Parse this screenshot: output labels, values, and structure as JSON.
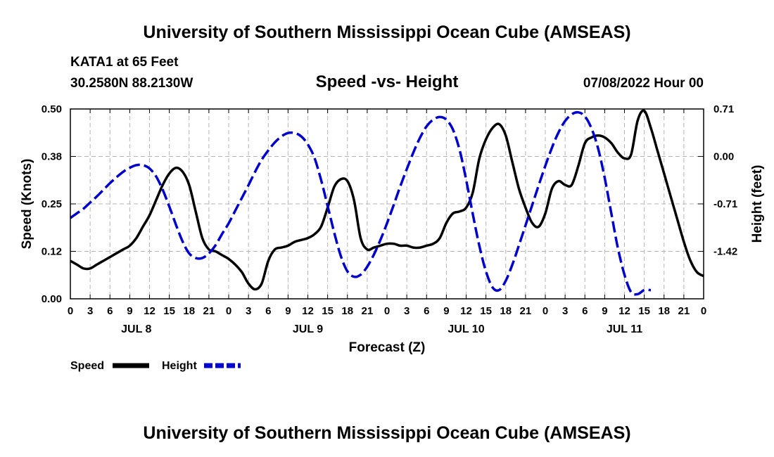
{
  "page": {
    "title_top": "University of Southern Mississippi Ocean Cube (AMSEAS)",
    "title_bottom": "University of Southern Mississippi Ocean Cube (AMSEAS)"
  },
  "header": {
    "station": "KATA1 at 65 Feet",
    "coords": "30.2580N  88.2130W",
    "subtitle": "Speed -vs- Height",
    "datetime": "07/08/2022 Hour 00"
  },
  "colors": {
    "speed": "#000000",
    "height": "#0000cc",
    "grid": "#b4b4b4"
  },
  "chart_data": {
    "type": "line",
    "title": "Speed -vs- Height",
    "xlabel": "Forecast (Z)",
    "ylabel": "Speed (Knots)",
    "y2label": "Height (feet)",
    "x_unit": "hours since 07/08/2022 00Z",
    "xlim": [
      0,
      96
    ],
    "ylim": [
      0,
      0.5
    ],
    "y2lim": [
      -2.13,
      0.71
    ],
    "yticks": [
      0,
      0.125,
      0.25,
      0.375,
      0.5
    ],
    "ytick_labels": [
      "0.00",
      "0.12",
      "0.25",
      "0.38",
      "0.50"
    ],
    "y2ticks": [
      0.71,
      0,
      -0.71,
      -1.42
    ],
    "y2tick_labels": [
      "0.71",
      "0.00",
      "-0.71",
      "-1.42"
    ],
    "xticks": [
      0,
      3,
      6,
      9,
      12,
      15,
      18,
      21,
      24,
      27,
      30,
      33,
      36,
      39,
      42,
      45,
      48,
      51,
      54,
      57,
      60,
      63,
      66,
      69,
      72,
      75,
      78,
      81,
      84,
      87,
      90,
      93,
      96
    ],
    "xtick_labels": [
      "0",
      "3",
      "6",
      "9",
      "12",
      "15",
      "18",
      "21",
      "0",
      "3",
      "6",
      "9",
      "12",
      "15",
      "18",
      "21",
      "0",
      "3",
      "6",
      "9",
      "12",
      "15",
      "18",
      "21",
      "0",
      "3",
      "6",
      "9",
      "12",
      "15",
      "18",
      "21",
      "0"
    ],
    "date_labels": [
      {
        "x": 10,
        "label": "JUL 8"
      },
      {
        "x": 36,
        "label": "JUL 9"
      },
      {
        "x": 60,
        "label": "JUL 10"
      },
      {
        "x": 84,
        "label": "JUL 11"
      }
    ],
    "grid": true,
    "legend": "bottom-left",
    "series": [
      {
        "name": "Speed",
        "axis": "left",
        "style": "solid",
        "points": [
          [
            0,
            0.1
          ],
          [
            1,
            0.09
          ],
          [
            2,
            0.08
          ],
          [
            3,
            0.08
          ],
          [
            4,
            0.09
          ],
          [
            5,
            0.1
          ],
          [
            6,
            0.11
          ],
          [
            7,
            0.12
          ],
          [
            8,
            0.13
          ],
          [
            9,
            0.14
          ],
          [
            10,
            0.16
          ],
          [
            11,
            0.19
          ],
          [
            12,
            0.22
          ],
          [
            13,
            0.26
          ],
          [
            14,
            0.3
          ],
          [
            15,
            0.33
          ],
          [
            16,
            0.345
          ],
          [
            17,
            0.335
          ],
          [
            18,
            0.3
          ],
          [
            19,
            0.23
          ],
          [
            20,
            0.16
          ],
          [
            21,
            0.13
          ],
          [
            22,
            0.125
          ],
          [
            23,
            0.115
          ],
          [
            24,
            0.105
          ],
          [
            25,
            0.09
          ],
          [
            26,
            0.07
          ],
          [
            27,
            0.04
          ],
          [
            28,
            0.025
          ],
          [
            29,
            0.04
          ],
          [
            30,
            0.1
          ],
          [
            31,
            0.13
          ],
          [
            32,
            0.135
          ],
          [
            33,
            0.14
          ],
          [
            34,
            0.15
          ],
          [
            35,
            0.155
          ],
          [
            36,
            0.16
          ],
          [
            37,
            0.17
          ],
          [
            38,
            0.19
          ],
          [
            39,
            0.24
          ],
          [
            40,
            0.295
          ],
          [
            41,
            0.315
          ],
          [
            42,
            0.31
          ],
          [
            43,
            0.26
          ],
          [
            44,
            0.16
          ],
          [
            45,
            0.13
          ],
          [
            46,
            0.135
          ],
          [
            47,
            0.14
          ],
          [
            48,
            0.145
          ],
          [
            49,
            0.145
          ],
          [
            50,
            0.14
          ],
          [
            51,
            0.14
          ],
          [
            52,
            0.135
          ],
          [
            53,
            0.135
          ],
          [
            54,
            0.14
          ],
          [
            55,
            0.145
          ],
          [
            56,
            0.16
          ],
          [
            57,
            0.2
          ],
          [
            58,
            0.225
          ],
          [
            59,
            0.23
          ],
          [
            60,
            0.24
          ],
          [
            61,
            0.28
          ],
          [
            62,
            0.37
          ],
          [
            63,
            0.42
          ],
          [
            64,
            0.45
          ],
          [
            65,
            0.46
          ],
          [
            66,
            0.43
          ],
          [
            67,
            0.36
          ],
          [
            68,
            0.29
          ],
          [
            69,
            0.24
          ],
          [
            70,
            0.2
          ],
          [
            71,
            0.19
          ],
          [
            72,
            0.225
          ],
          [
            73,
            0.29
          ],
          [
            74,
            0.31
          ],
          [
            75,
            0.3
          ],
          [
            76,
            0.3
          ],
          [
            77,
            0.35
          ],
          [
            78,
            0.41
          ],
          [
            79,
            0.425
          ],
          [
            80,
            0.43
          ],
          [
            81,
            0.425
          ],
          [
            82,
            0.41
          ],
          [
            83,
            0.385
          ],
          [
            84,
            0.37
          ],
          [
            85,
            0.38
          ],
          [
            86,
            0.47
          ],
          [
            87,
            0.495
          ],
          [
            88,
            0.45
          ],
          [
            89,
            0.39
          ],
          [
            90,
            0.33
          ],
          [
            91,
            0.27
          ],
          [
            92,
            0.21
          ],
          [
            93,
            0.15
          ],
          [
            94,
            0.1
          ],
          [
            95,
            0.07
          ],
          [
            96,
            0.06
          ]
        ]
      },
      {
        "name": "Height",
        "axis": "right",
        "style": "dashed",
        "points": [
          [
            0,
            -0.92
          ],
          [
            1,
            -0.85
          ],
          [
            2,
            -0.78
          ],
          [
            3,
            -0.69
          ],
          [
            4,
            -0.6
          ],
          [
            5,
            -0.5
          ],
          [
            6,
            -0.4
          ],
          [
            7,
            -0.31
          ],
          [
            8,
            -0.23
          ],
          [
            9,
            -0.17
          ],
          [
            10,
            -0.13
          ],
          [
            11,
            -0.13
          ],
          [
            12,
            -0.18
          ],
          [
            13,
            -0.3
          ],
          [
            14,
            -0.5
          ],
          [
            15,
            -0.75
          ],
          [
            16,
            -1.02
          ],
          [
            17,
            -1.27
          ],
          [
            18,
            -1.45
          ],
          [
            19,
            -1.52
          ],
          [
            20,
            -1.52
          ],
          [
            21,
            -1.45
          ],
          [
            22,
            -1.33
          ],
          [
            23,
            -1.16
          ],
          [
            24,
            -1.0
          ],
          [
            25,
            -0.81
          ],
          [
            26,
            -0.62
          ],
          [
            27,
            -0.43
          ],
          [
            28,
            -0.23
          ],
          [
            29,
            -0.05
          ],
          [
            30,
            0.09
          ],
          [
            31,
            0.21
          ],
          [
            32,
            0.3
          ],
          [
            33,
            0.35
          ],
          [
            34,
            0.35
          ],
          [
            35,
            0.3
          ],
          [
            36,
            0.18
          ],
          [
            37,
            -0.02
          ],
          [
            38,
            -0.35
          ],
          [
            39,
            -0.74
          ],
          [
            40,
            -1.14
          ],
          [
            41,
            -1.49
          ],
          [
            42,
            -1.72
          ],
          [
            43,
            -1.8
          ],
          [
            44,
            -1.77
          ],
          [
            45,
            -1.65
          ],
          [
            46,
            -1.47
          ],
          [
            47,
            -1.25
          ],
          [
            48,
            -1.0
          ],
          [
            49,
            -0.73
          ],
          [
            50,
            -0.45
          ],
          [
            51,
            -0.19
          ],
          [
            52,
            0.06
          ],
          [
            53,
            0.28
          ],
          [
            54,
            0.45
          ],
          [
            55,
            0.55
          ],
          [
            56,
            0.59
          ],
          [
            57,
            0.55
          ],
          [
            58,
            0.4
          ],
          [
            59,
            0.1
          ],
          [
            60,
            -0.35
          ],
          [
            61,
            -0.86
          ],
          [
            62,
            -1.34
          ],
          [
            63,
            -1.72
          ],
          [
            64,
            -1.96
          ],
          [
            65,
            -2.0
          ],
          [
            66,
            -1.86
          ],
          [
            67,
            -1.62
          ],
          [
            68,
            -1.33
          ],
          [
            69,
            -1.03
          ],
          [
            70,
            -0.73
          ],
          [
            71,
            -0.43
          ],
          [
            72,
            -0.14
          ],
          [
            73,
            0.13
          ],
          [
            74,
            0.36
          ],
          [
            75,
            0.53
          ],
          [
            76,
            0.63
          ],
          [
            77,
            0.66
          ],
          [
            78,
            0.6
          ],
          [
            79,
            0.42
          ],
          [
            80,
            0.12
          ],
          [
            81,
            -0.32
          ],
          [
            82,
            -0.85
          ],
          [
            83,
            -1.37
          ],
          [
            84,
            -1.77
          ],
          [
            85,
            -2.03
          ],
          [
            86,
            -2.06
          ],
          [
            87,
            -2.0
          ],
          [
            88,
            -2.0
          ]
        ]
      }
    ]
  }
}
